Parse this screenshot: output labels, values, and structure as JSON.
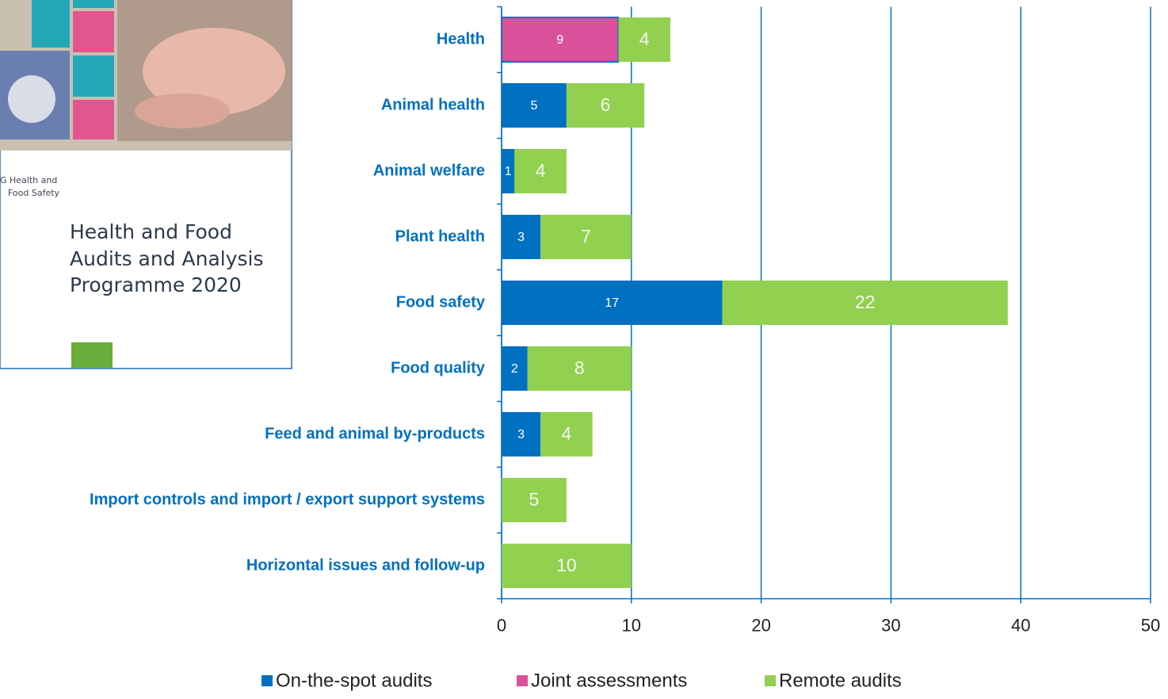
{
  "cover": {
    "publisher": [
      "G Health and",
      "Food Safety"
    ],
    "title": [
      "Health and Food",
      "Audits and Analysis",
      "Programme 2020"
    ]
  },
  "chart_data": {
    "type": "stacked-bar-horizontal",
    "categories": [
      "Health",
      "Animal health",
      "Animal welfare",
      "Plant health",
      "Food safety",
      "Food quality",
      "Feed and animal by-products",
      "Import controls and import / export support systems",
      "Horizontal issues and follow-up"
    ],
    "series": [
      {
        "name": "On-the-spot audits",
        "color": "#0070c0",
        "values": [
          null,
          5,
          1,
          3,
          17,
          2,
          3,
          null,
          null
        ]
      },
      {
        "name": "Joint assessments",
        "color": "#d9519a",
        "values": [
          9,
          null,
          null,
          null,
          null,
          null,
          null,
          null,
          null
        ]
      },
      {
        "name": "Remote audits",
        "color": "#92d050",
        "values": [
          4,
          6,
          4,
          7,
          22,
          8,
          4,
          5,
          10
        ]
      }
    ],
    "xlim": [
      0,
      50
    ],
    "xticks": [
      0,
      10,
      20,
      30,
      40,
      50
    ],
    "grid": true
  }
}
